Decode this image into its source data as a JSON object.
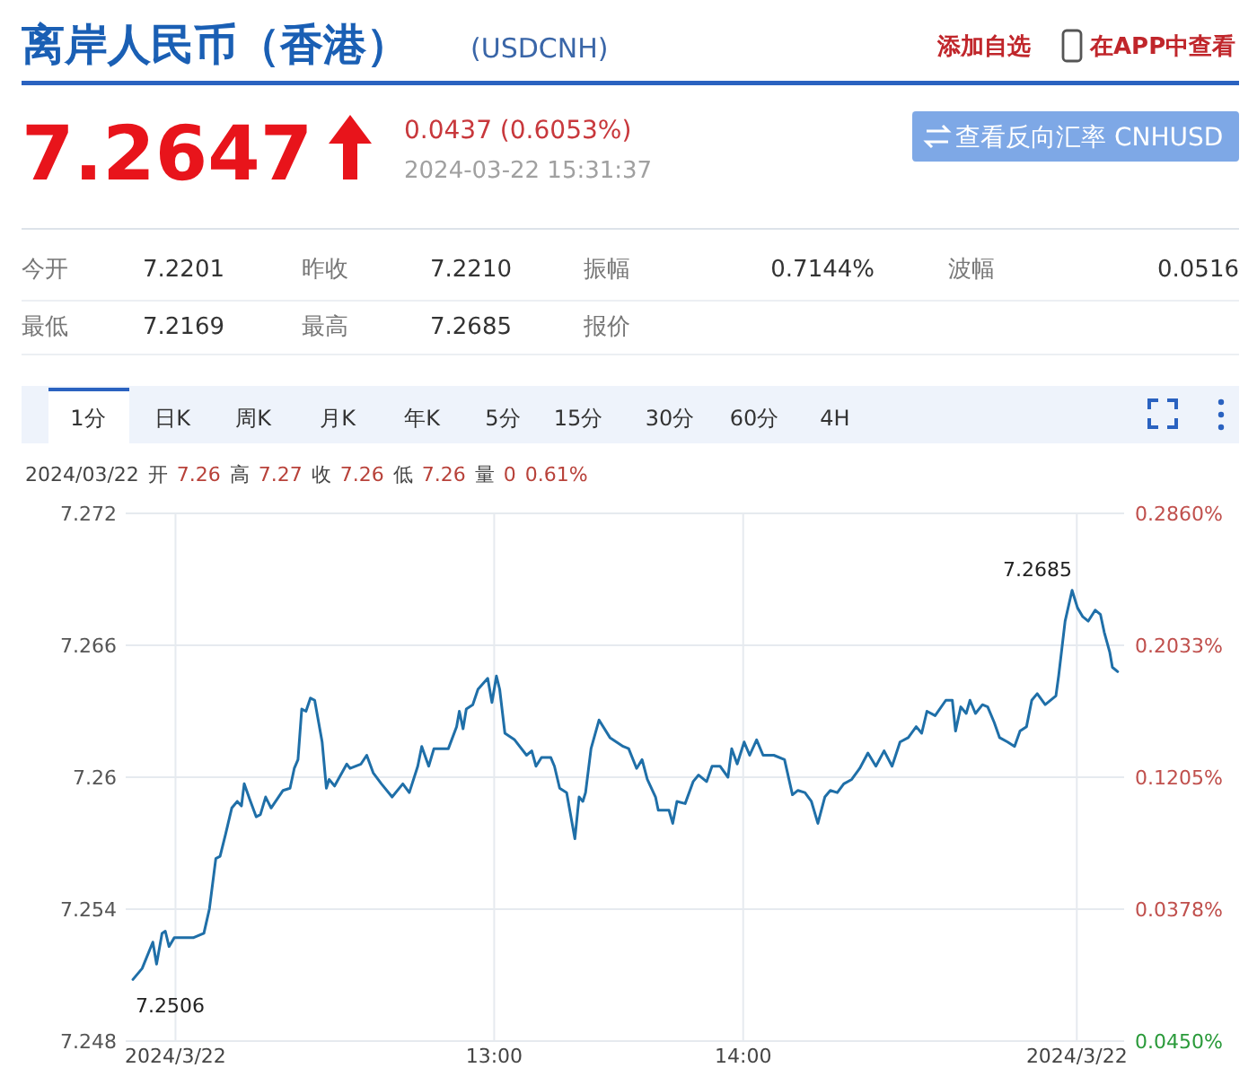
{
  "chart_data": {
    "type": "line",
    "title": "离岸人民币（香港）",
    "subtitle": "(USDCNH)",
    "x": [
      11.549,
      11.586,
      11.629,
      11.644,
      11.666,
      11.679,
      11.694,
      11.715,
      11.791,
      11.834,
      11.856,
      11.882,
      11.899,
      11.921,
      11.946,
      11.968,
      11.985,
      11.996,
      12.018,
      12.044,
      12.061,
      12.082,
      12.104,
      12.152,
      12.18,
      12.197,
      12.212,
      12.227,
      12.244,
      12.262,
      12.279,
      12.309,
      12.326,
      12.337,
      12.359,
      12.408,
      12.421,
      12.465,
      12.488,
      12.514,
      12.547,
      12.59,
      12.633,
      12.659,
      12.693,
      12.709,
      12.737,
      12.758,
      12.816,
      12.849,
      12.86,
      12.875,
      12.888,
      12.914,
      12.935,
      12.974,
      12.991,
      13.009,
      13.022,
      13.043,
      13.082,
      13.13,
      13.151,
      13.168,
      13.19,
      13.227,
      13.242,
      13.263,
      13.291,
      13.324,
      13.341,
      13.356,
      13.367,
      13.389,
      13.421,
      13.465,
      13.518,
      13.54,
      13.572,
      13.594,
      13.615,
      13.648,
      13.659,
      13.702,
      13.717,
      13.734,
      13.767,
      13.799,
      13.821,
      13.853,
      13.875,
      13.907,
      13.939,
      13.954,
      13.976,
      14.004,
      14.026,
      14.054,
      14.08,
      14.123,
      14.166,
      14.198,
      14.22,
      14.248,
      14.274,
      14.3,
      14.328,
      14.35,
      14.378,
      14.404,
      14.436,
      14.468,
      14.501,
      14.533,
      14.566,
      14.598,
      14.63,
      14.663,
      14.695,
      14.717,
      14.738,
      14.771,
      14.814,
      14.84,
      14.853,
      14.874,
      14.896,
      14.911,
      14.933,
      14.961,
      14.982,
      15.008,
      15.03,
      15.062,
      15.09,
      15.112,
      15.138,
      15.159,
      15.181,
      15.213,
      15.256,
      15.267,
      15.293,
      15.321,
      15.343,
      15.364,
      15.386,
      15.414,
      15.435,
      15.45,
      15.472,
      15.483,
      15.504
    ],
    "values": [
      7.2508,
      7.2513,
      7.2525,
      7.2515,
      7.2529,
      7.253,
      7.2523,
      7.2527,
      7.2527,
      7.2529,
      7.254,
      7.2563,
      7.2564,
      7.2574,
      7.2586,
      7.2589,
      7.2587,
      7.2597,
      7.259,
      7.2582,
      7.2583,
      7.2591,
      7.2586,
      7.2594,
      7.2595,
      7.2604,
      7.2608,
      7.2631,
      7.263,
      7.2636,
      7.2635,
      7.2616,
      7.2595,
      7.2599,
      7.2596,
      7.2606,
      7.2604,
      7.2606,
      7.261,
      7.2602,
      7.2597,
      7.2591,
      7.2597,
      7.2593,
      7.2605,
      7.2614,
      7.2605,
      7.2613,
      7.2613,
      7.2623,
      7.263,
      7.2622,
      7.2631,
      7.2633,
      7.264,
      7.2645,
      7.2634,
      7.2646,
      7.264,
      7.262,
      7.2617,
      7.261,
      7.2612,
      7.2605,
      7.2609,
      7.2609,
      7.2605,
      7.2595,
      7.2593,
      7.2572,
      7.2591,
      7.2589,
      7.2593,
      7.2613,
      7.2626,
      7.2618,
      7.2614,
      7.2613,
      7.2604,
      7.2608,
      7.2599,
      7.2591,
      7.2585,
      7.2585,
      7.2579,
      7.2589,
      7.2588,
      7.2598,
      7.2601,
      7.2598,
      7.2605,
      7.2605,
      7.26,
      7.2613,
      7.2606,
      7.2616,
      7.261,
      7.2617,
      7.261,
      7.261,
      7.2608,
      7.2592,
      7.2594,
      7.2593,
      7.2589,
      7.2579,
      7.2591,
      7.2594,
      7.2593,
      7.2597,
      7.2599,
      7.2604,
      7.2611,
      7.2605,
      7.2612,
      7.2605,
      7.2616,
      7.2618,
      7.2623,
      7.262,
      7.263,
      7.2628,
      7.2635,
      7.2635,
      7.2621,
      7.2632,
      7.2629,
      7.2635,
      7.2629,
      7.2633,
      7.2632,
      7.2625,
      7.2618,
      7.2616,
      7.2614,
      7.2621,
      7.2623,
      7.2635,
      7.2638,
      7.2633,
      7.2637,
      7.2646,
      7.2671,
      7.2685,
      7.2677,
      7.2673,
      7.2671,
      7.2676,
      7.2674,
      7.2666,
      7.2657,
      7.265,
      7.2648
    ],
    "color": "#1f6fa8",
    "xlim": [
      11.52,
      15.53
    ],
    "xticks": [
      {
        "value": 11.72,
        "label": "2024/3/22"
      },
      {
        "value": 13,
        "label": "13:00"
      },
      {
        "value": 14,
        "label": "14:00"
      },
      {
        "value": 15.34,
        "label": "2024/3/22"
      }
    ],
    "ylim": [
      7.248,
      7.272
    ],
    "yticks": [
      7.248,
      7.254,
      7.26,
      7.266,
      7.272
    ],
    "y2lim": [
      -0.045,
      0.286
    ],
    "y2ticks": [
      {
        "value": -0.045,
        "label": "0.0450%"
      },
      {
        "value": 0.0378,
        "label": "0.0378%"
      },
      {
        "value": 0.1205,
        "label": "0.1205%"
      },
      {
        "value": 0.2033,
        "label": "0.2033%"
      },
      {
        "value": 0.286,
        "label": "0.2860%"
      }
    ],
    "grid": true,
    "annotations": [
      "添加自选",
      "在APP中查看",
      "7.2647",
      "0.0437 (0.6053%)",
      "2024-03-22 15:31:37",
      "查看反向汇率 CNHUSD",
      "今开",
      "7.2201",
      "昨收",
      "7.2210",
      "振幅",
      "0.7144%",
      "波幅",
      "0.0516",
      "最低",
      "7.2169",
      "最高",
      "7.2685",
      "报价",
      "1分",
      "日K",
      "周K",
      "月K",
      "年K",
      "5分",
      "15分",
      "30分",
      "60分",
      "4H",
      "2024/03/22",
      "开",
      "7.26",
      "高",
      "7.27",
      "收",
      "7.26",
      "低",
      "7.26",
      "量",
      "0",
      "0.61%",
      {
        "text": "7.2506",
        "x": 11.56,
        "y": 7.2506
      },
      {
        "text": "7.2685",
        "x": 15.321,
        "y": 7.2685
      }
    ]
  }
}
